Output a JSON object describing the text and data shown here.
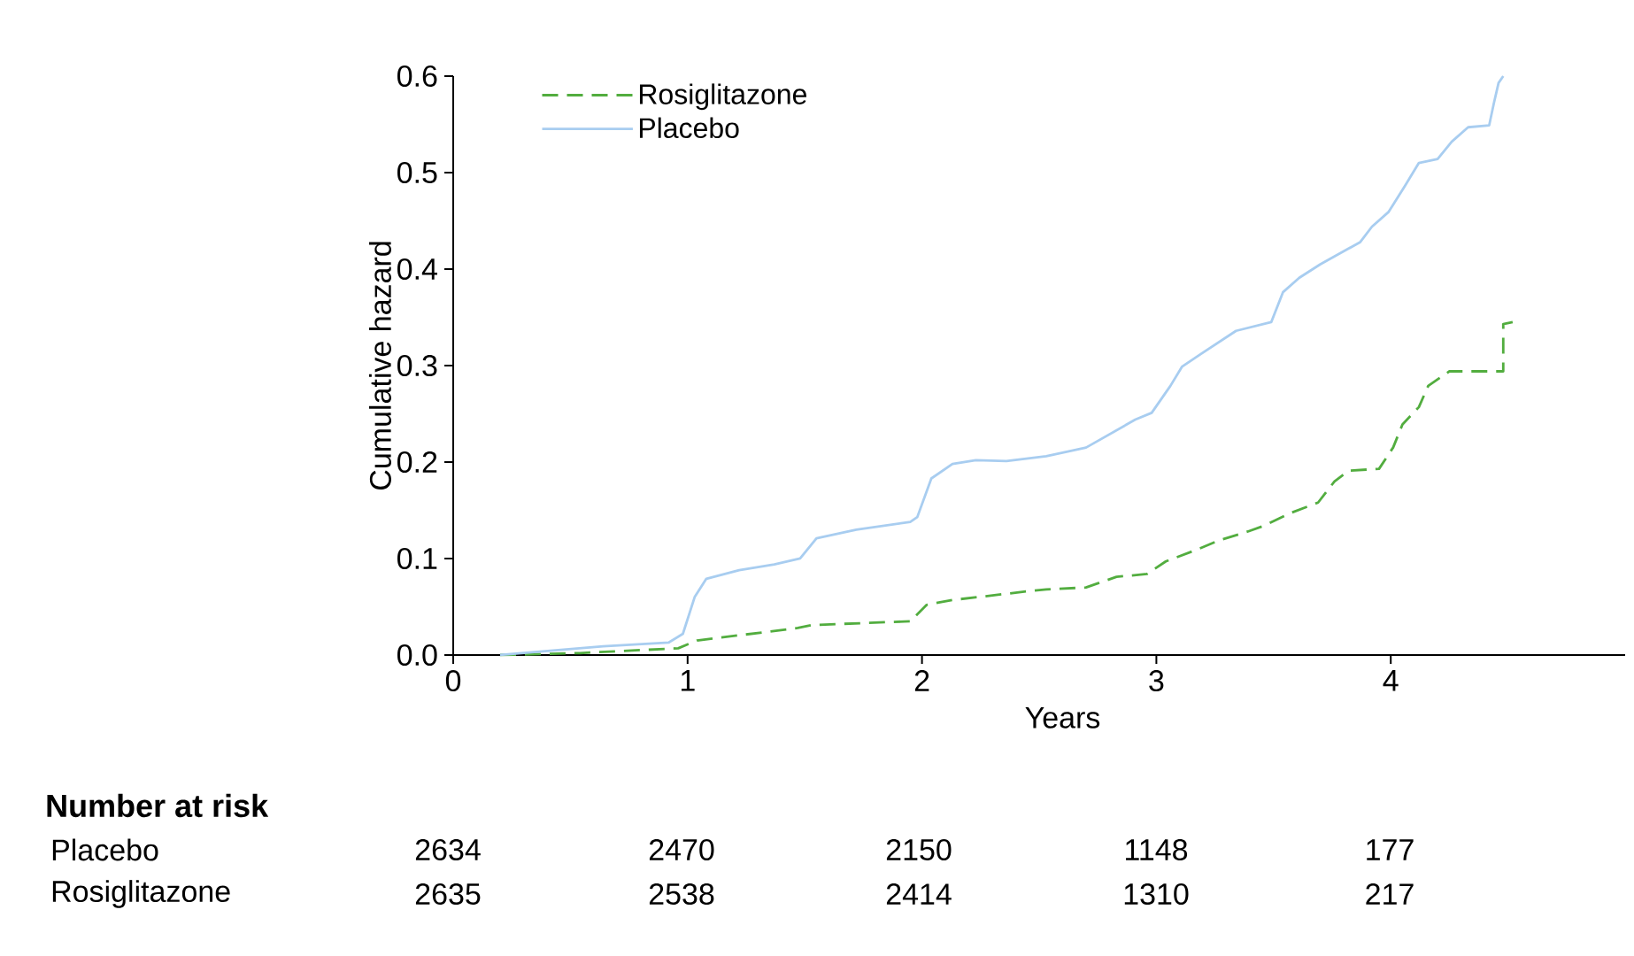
{
  "chart_data": {
    "type": "line",
    "xlabel": "Years",
    "ylabel": "Cumulative hazard",
    "xlim": [
      0,
      5.0
    ],
    "ylim": [
      0,
      0.6
    ],
    "xticks": [
      0,
      1,
      2,
      3,
      4
    ],
    "yticks": [
      {
        "value": 0,
        "label": "0.0"
      },
      {
        "value": 0.1,
        "label": "0.1"
      },
      {
        "value": 0.2,
        "label": "0.2"
      },
      {
        "value": 0.3,
        "label": "0.3"
      },
      {
        "value": 0.4,
        "label": "0.4"
      },
      {
        "value": 0.5,
        "label": "0.5"
      },
      {
        "value": 0.6,
        "label": "0.6"
      }
    ],
    "legend": "top left",
    "grid": false,
    "marker": "none",
    "series": [
      {
        "name": "Rosiglitazone",
        "color": "#52ad3f",
        "line_style": "dashed",
        "x": [
          0.2,
          0.54,
          0.96,
          1.04,
          1.47,
          1.53,
          1.95,
          2.02,
          2.13,
          2.45,
          2.53,
          2.7,
          2.83,
          2.96,
          3.04,
          3.16,
          3.27,
          3.39,
          3.46,
          3.57,
          3.69,
          3.76,
          3.82,
          3.95,
          4.01,
          4.05,
          4.12,
          4.16,
          4.25,
          4.48,
          4.48,
          4.52
        ],
        "values": [
          0.0,
          0.002,
          0.007,
          0.015,
          0.028,
          0.031,
          0.035,
          0.052,
          0.057,
          0.066,
          0.068,
          0.07,
          0.081,
          0.084,
          0.097,
          0.108,
          0.119,
          0.128,
          0.134,
          0.147,
          0.158,
          0.18,
          0.191,
          0.193,
          0.215,
          0.239,
          0.257,
          0.279,
          0.294,
          0.294,
          0.343,
          0.345
        ]
      },
      {
        "name": "Placebo",
        "color": "#a8cdf0",
        "line_style": "solid",
        "x": [
          0.2,
          0.64,
          0.92,
          0.98,
          1.03,
          1.08,
          1.22,
          1.37,
          1.48,
          1.55,
          1.72,
          1.95,
          1.98,
          2.04,
          2.13,
          2.23,
          2.36,
          2.53,
          2.7,
          2.91,
          2.98,
          3.06,
          3.11,
          3.19,
          3.34,
          3.49,
          3.54,
          3.61,
          3.7,
          3.87,
          3.92,
          3.99,
          4.06,
          4.12,
          4.2,
          4.26,
          4.33,
          4.42,
          4.44,
          4.46,
          4.48
        ],
        "values": [
          0.0,
          0.009,
          0.013,
          0.022,
          0.06,
          0.079,
          0.088,
          0.094,
          0.1,
          0.121,
          0.13,
          0.138,
          0.143,
          0.183,
          0.198,
          0.202,
          0.201,
          0.206,
          0.215,
          0.244,
          0.251,
          0.279,
          0.299,
          0.312,
          0.336,
          0.345,
          0.376,
          0.391,
          0.405,
          0.428,
          0.444,
          0.459,
          0.486,
          0.51,
          0.514,
          0.532,
          0.547,
          0.549,
          0.572,
          0.593,
          0.6
        ]
      }
    ],
    "annotations": [
      "**Number at risk**",
      "Placebo",
      "2634",
      "2470",
      "2150",
      "1148",
      "177",
      "Rosiglitazone",
      "2635",
      "2538",
      "2414",
      "1310",
      "217"
    ]
  }
}
